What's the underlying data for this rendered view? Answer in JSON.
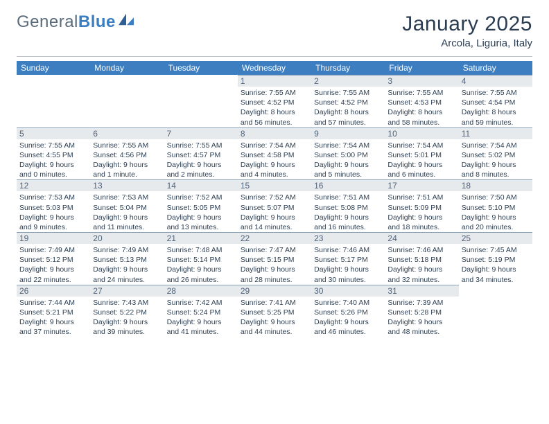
{
  "colors": {
    "header_bg": "#3d7ec1",
    "header_text": "#ffffff",
    "daynum_bg": "#e7eaed",
    "daynum_border": "#8aa0b5",
    "body_text": "#2f4154",
    "rule": "#b9c2cb",
    "page_bg": "#ffffff"
  },
  "fonts": {
    "title_size_pt": 22,
    "location_size_pt": 11,
    "header_size_pt": 9,
    "daynum_size_pt": 9,
    "info_size_pt": 8
  },
  "logo": {
    "part1": "General",
    "part2": "Blue"
  },
  "title": {
    "month": "January 2025",
    "location": "Arcola, Liguria, Italy"
  },
  "weekdays": [
    "Sunday",
    "Monday",
    "Tuesday",
    "Wednesday",
    "Thursday",
    "Friday",
    "Saturday"
  ],
  "layout": {
    "leading_blanks": 3
  },
  "days": [
    {
      "n": "1",
      "sunrise": "7:55 AM",
      "sunset": "4:52 PM",
      "daylight": "8 hours and 56 minutes."
    },
    {
      "n": "2",
      "sunrise": "7:55 AM",
      "sunset": "4:52 PM",
      "daylight": "8 hours and 57 minutes."
    },
    {
      "n": "3",
      "sunrise": "7:55 AM",
      "sunset": "4:53 PM",
      "daylight": "8 hours and 58 minutes."
    },
    {
      "n": "4",
      "sunrise": "7:55 AM",
      "sunset": "4:54 PM",
      "daylight": "8 hours and 59 minutes."
    },
    {
      "n": "5",
      "sunrise": "7:55 AM",
      "sunset": "4:55 PM",
      "daylight": "9 hours and 0 minutes."
    },
    {
      "n": "6",
      "sunrise": "7:55 AM",
      "sunset": "4:56 PM",
      "daylight": "9 hours and 1 minute."
    },
    {
      "n": "7",
      "sunrise": "7:55 AM",
      "sunset": "4:57 PM",
      "daylight": "9 hours and 2 minutes."
    },
    {
      "n": "8",
      "sunrise": "7:54 AM",
      "sunset": "4:58 PM",
      "daylight": "9 hours and 4 minutes."
    },
    {
      "n": "9",
      "sunrise": "7:54 AM",
      "sunset": "5:00 PM",
      "daylight": "9 hours and 5 minutes."
    },
    {
      "n": "10",
      "sunrise": "7:54 AM",
      "sunset": "5:01 PM",
      "daylight": "9 hours and 6 minutes."
    },
    {
      "n": "11",
      "sunrise": "7:54 AM",
      "sunset": "5:02 PM",
      "daylight": "9 hours and 8 minutes."
    },
    {
      "n": "12",
      "sunrise": "7:53 AM",
      "sunset": "5:03 PM",
      "daylight": "9 hours and 9 minutes."
    },
    {
      "n": "13",
      "sunrise": "7:53 AM",
      "sunset": "5:04 PM",
      "daylight": "9 hours and 11 minutes."
    },
    {
      "n": "14",
      "sunrise": "7:52 AM",
      "sunset": "5:05 PM",
      "daylight": "9 hours and 13 minutes."
    },
    {
      "n": "15",
      "sunrise": "7:52 AM",
      "sunset": "5:07 PM",
      "daylight": "9 hours and 14 minutes."
    },
    {
      "n": "16",
      "sunrise": "7:51 AM",
      "sunset": "5:08 PM",
      "daylight": "9 hours and 16 minutes."
    },
    {
      "n": "17",
      "sunrise": "7:51 AM",
      "sunset": "5:09 PM",
      "daylight": "9 hours and 18 minutes."
    },
    {
      "n": "18",
      "sunrise": "7:50 AM",
      "sunset": "5:10 PM",
      "daylight": "9 hours and 20 minutes."
    },
    {
      "n": "19",
      "sunrise": "7:49 AM",
      "sunset": "5:12 PM",
      "daylight": "9 hours and 22 minutes."
    },
    {
      "n": "20",
      "sunrise": "7:49 AM",
      "sunset": "5:13 PM",
      "daylight": "9 hours and 24 minutes."
    },
    {
      "n": "21",
      "sunrise": "7:48 AM",
      "sunset": "5:14 PM",
      "daylight": "9 hours and 26 minutes."
    },
    {
      "n": "22",
      "sunrise": "7:47 AM",
      "sunset": "5:15 PM",
      "daylight": "9 hours and 28 minutes."
    },
    {
      "n": "23",
      "sunrise": "7:46 AM",
      "sunset": "5:17 PM",
      "daylight": "9 hours and 30 minutes."
    },
    {
      "n": "24",
      "sunrise": "7:46 AM",
      "sunset": "5:18 PM",
      "daylight": "9 hours and 32 minutes."
    },
    {
      "n": "25",
      "sunrise": "7:45 AM",
      "sunset": "5:19 PM",
      "daylight": "9 hours and 34 minutes."
    },
    {
      "n": "26",
      "sunrise": "7:44 AM",
      "sunset": "5:21 PM",
      "daylight": "9 hours and 37 minutes."
    },
    {
      "n": "27",
      "sunrise": "7:43 AM",
      "sunset": "5:22 PM",
      "daylight": "9 hours and 39 minutes."
    },
    {
      "n": "28",
      "sunrise": "7:42 AM",
      "sunset": "5:24 PM",
      "daylight": "9 hours and 41 minutes."
    },
    {
      "n": "29",
      "sunrise": "7:41 AM",
      "sunset": "5:25 PM",
      "daylight": "9 hours and 44 minutes."
    },
    {
      "n": "30",
      "sunrise": "7:40 AM",
      "sunset": "5:26 PM",
      "daylight": "9 hours and 46 minutes."
    },
    {
      "n": "31",
      "sunrise": "7:39 AM",
      "sunset": "5:28 PM",
      "daylight": "9 hours and 48 minutes."
    }
  ],
  "labels": {
    "sunrise_prefix": "Sunrise: ",
    "sunset_prefix": "Sunset: ",
    "daylight_prefix": "Daylight: "
  }
}
